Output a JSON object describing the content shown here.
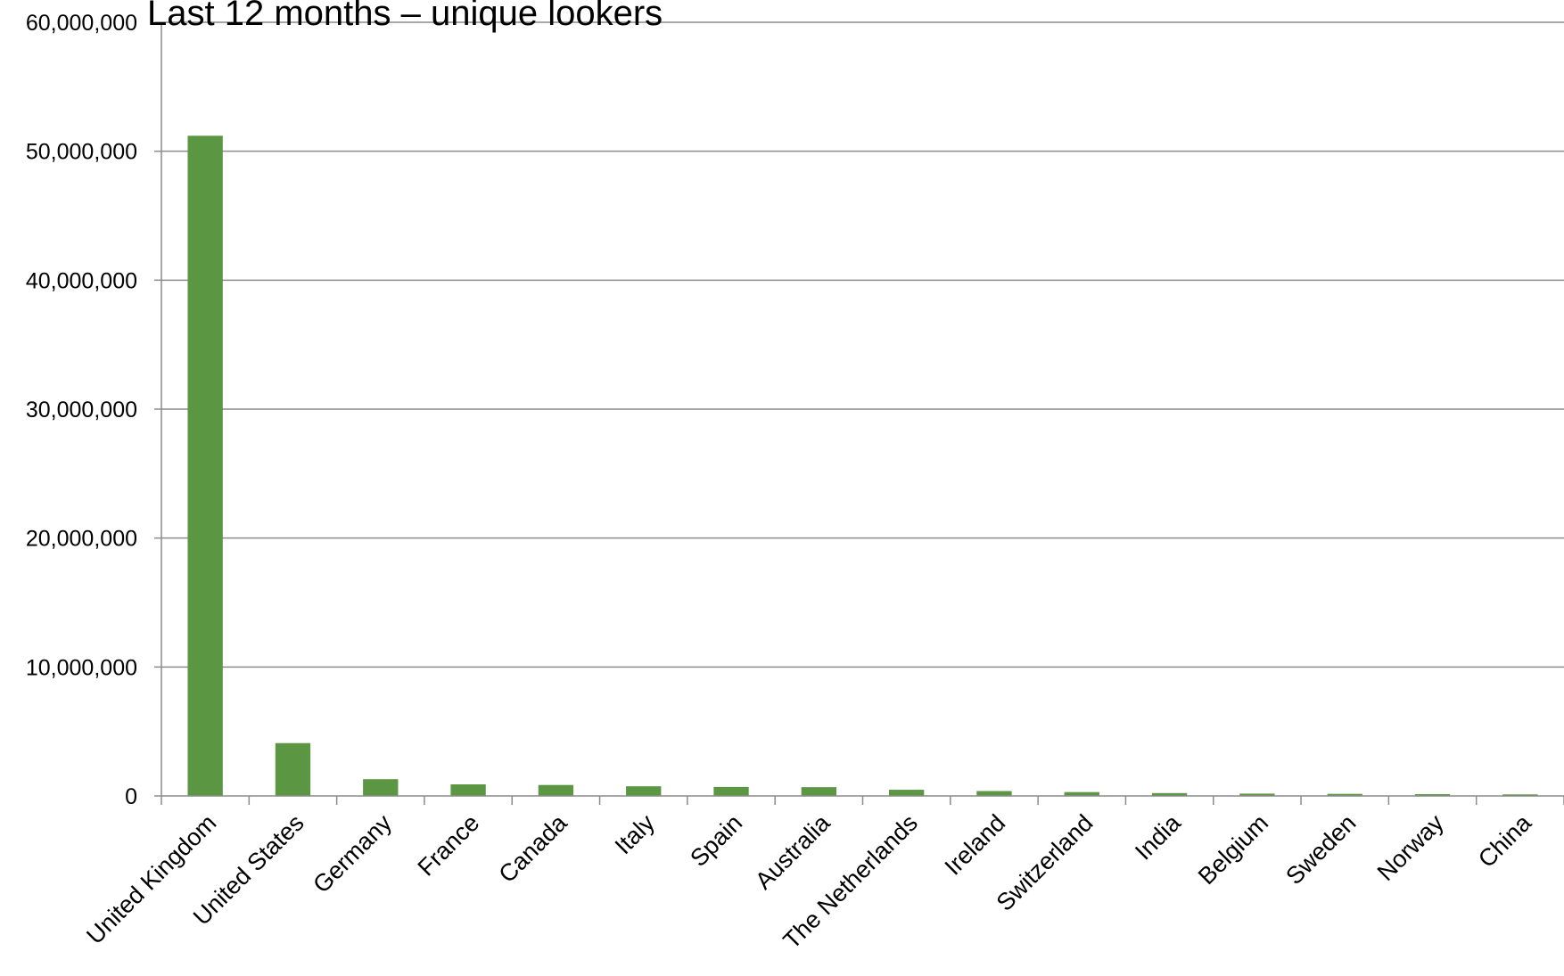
{
  "chart_data": {
    "type": "bar",
    "title": "Last 12 months – unique lookers",
    "xlabel": "",
    "ylabel": "",
    "categories": [
      "United Kingdom",
      "United States",
      "Germany",
      "France",
      "Canada",
      "Italy",
      "Spain",
      "Australia",
      "The Netherlands",
      "Ireland",
      "Switzerland",
      "India",
      "Belgium",
      "Sweden",
      "Norway",
      "China"
    ],
    "values": [
      51200000,
      4100000,
      1300000,
      900000,
      850000,
      750000,
      700000,
      680000,
      480000,
      380000,
      300000,
      220000,
      180000,
      160000,
      140000,
      120000
    ],
    "ylim": [
      0,
      60000000
    ],
    "yticks": [
      0,
      10000000,
      20000000,
      30000000,
      40000000,
      50000000,
      60000000
    ],
    "ytick_labels": [
      "0",
      "10,000,000",
      "20,000,000",
      "30,000,000",
      "40,000,000",
      "50,000,000",
      "60,000,000"
    ],
    "grid": true,
    "legend": "none",
    "colors": {
      "bar": "#5b9642",
      "grid": "#8c8c8c",
      "axis": "#8c8c8c",
      "text": "#000000"
    }
  }
}
